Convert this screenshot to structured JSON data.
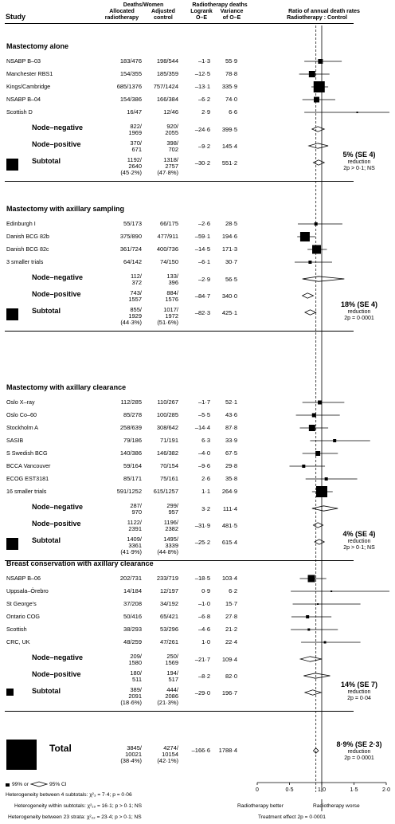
{
  "header": {
    "study": "Study",
    "deaths_women": "Deaths/Women",
    "allocated": "Allocated",
    "radiotherapy": "radiotherapy",
    "adjusted": "Adjusted",
    "control": "control",
    "rt_deaths": "Radiotherapy deaths",
    "logrank": "Logrank",
    "oe": "O–E",
    "variance": "Variance",
    "of_oe": "of O–E",
    "ratio_title": "Ratio of annual death rates",
    "ratio_sub": "Radiotherapy : Control"
  },
  "chart_data": {
    "type": "forest",
    "x_axis": {
      "ticks": [
        "0",
        "0·5",
        "1·0",
        "1·5",
        "2·0"
      ],
      "range": [
        0,
        2
      ],
      "reference_line": 1.0,
      "overall_effect_line": 0.91
    },
    "sections": [
      {
        "title": "Mastectomy alone",
        "studies": [
          {
            "name": "NSABP B–03",
            "rt": "183/476",
            "ctrl": "198/544",
            "oe": "–1·3",
            "var": "55·9",
            "ratio": 0.98,
            "lo": 0.73,
            "hi": 1.31,
            "box": 6
          },
          {
            "name": "Manchester RBS1",
            "rt": "154/355",
            "ctrl": "185/359",
            "oe": "–12·5",
            "var": "78·8",
            "ratio": 0.85,
            "lo": 0.65,
            "hi": 1.12,
            "box": 8
          },
          {
            "name": "Kings/Cambridge",
            "rt": "685/1376",
            "ctrl": "757/1424",
            "oe": "–13·1",
            "var": "335·9",
            "ratio": 0.96,
            "lo": 0.84,
            "hi": 1.1,
            "box": 14
          },
          {
            "name": "NSABP B–04",
            "rt": "154/386",
            "ctrl": "166/384",
            "oe": "–6·2",
            "var": "74·0",
            "ratio": 0.92,
            "lo": 0.7,
            "hi": 1.21,
            "box": 7
          },
          {
            "name": "Scottish D",
            "rt": "16/47",
            "ctrl": "12/46",
            "oe": "2·9",
            "var": "6·6",
            "ratio": 1.55,
            "lo": 0.73,
            "hi": 2.1,
            "box": 2
          }
        ],
        "node_negative": {
          "label": "Node–negative",
          "rt": "822/\n1969",
          "ctrl": "920/\n2055",
          "oe": "–24·6",
          "var": "399·5",
          "ratio": 0.94,
          "lo": 0.85,
          "hi": 1.04
        },
        "node_positive": {
          "label": "Node–positive",
          "rt": "370/\n671",
          "ctrl": "398/\n702",
          "oe": "–9·2",
          "var": "145·4",
          "ratio": 0.94,
          "lo": 0.8,
          "hi": 1.1
        },
        "subtotal": {
          "label": "Subtotal",
          "rt": "1192/\n2640\n(45·2%)",
          "ctrl": "1318/\n2757\n(47·8%)",
          "oe": "–30·2",
          "var": "551·2",
          "ratio": 0.95,
          "lo": 0.87,
          "hi": 1.04
        },
        "reduction": {
          "main": "5% (SE 4)",
          "word": "reduction",
          "p": "2p > 0·1; NS"
        }
      },
      {
        "title": "Mastectomy with axillary sampling",
        "studies": [
          {
            "name": "Edinburgh I",
            "rt": "55/173",
            "ctrl": "66/175",
            "oe": "–2·6",
            "var": "28·5",
            "ratio": 0.91,
            "lo": 0.63,
            "hi": 1.32,
            "box": 4
          },
          {
            "name": "Danish BCG 82b",
            "rt": "375/890",
            "ctrl": "477/911",
            "oe": "–59·1",
            "var": "194·6",
            "ratio": 0.74,
            "lo": 0.62,
            "hi": 0.9,
            "box": 12
          },
          {
            "name": "Danish BCG 82c",
            "rt": "361/724",
            "ctrl": "400/736",
            "oe": "–14·5",
            "var": "171·3",
            "ratio": 0.92,
            "lo": 0.78,
            "hi": 1.08,
            "box": 11
          },
          {
            "name": "3 smaller trials",
            "rt": "64/142",
            "ctrl": "74/150",
            "oe": "–6·1",
            "var": "30·7",
            "ratio": 0.82,
            "lo": 0.58,
            "hi": 1.16,
            "box": 4
          }
        ],
        "node_negative": {
          "label": "Node–negative",
          "rt": "112/\n372",
          "ctrl": "133/\n396",
          "oe": "–2·9",
          "var": "56·5",
          "ratio": 0.95,
          "lo": 0.7,
          "hi": 1.35
        },
        "node_positive": {
          "label": "Node–positive",
          "rt": "743/\n1557",
          "ctrl": "884/\n1576",
          "oe": "–84·7",
          "var": "340·0",
          "ratio": 0.78,
          "lo": 0.7,
          "hi": 0.87
        },
        "subtotal": {
          "label": "Subtotal",
          "rt": "855/\n1929\n(44·3%)",
          "ctrl": "1017/\n1972\n(51·6%)",
          "oe": "–82·3",
          "var": "425·1",
          "ratio": 0.82,
          "lo": 0.74,
          "hi": 0.91
        },
        "reduction": {
          "main": "18% (SE 4)",
          "word": "reduction",
          "p": "2p = 0·0001"
        }
      },
      {
        "title": "Mastectomy with axillary clearance",
        "studies": [
          {
            "name": "Oslo X–ray",
            "rt": "112/285",
            "ctrl": "110/267",
            "oe": "–1·7",
            "var": "52·1",
            "ratio": 0.97,
            "lo": 0.7,
            "hi": 1.35,
            "box": 5
          },
          {
            "name": "Oslo Co–60",
            "rt": "85/278",
            "ctrl": "100/285",
            "oe": "–5·5",
            "var": "43·6",
            "ratio": 0.88,
            "lo": 0.6,
            "hi": 1.28,
            "box": 5
          },
          {
            "name": "Stockholm A",
            "rt": "258/639",
            "ctrl": "308/642",
            "oe": "–14·4",
            "var": "87·8",
            "ratio": 0.85,
            "lo": 0.66,
            "hi": 1.1,
            "box": 8
          },
          {
            "name": "SASIB",
            "rt": "79/186",
            "ctrl": "71/191",
            "oe": "6·3",
            "var": "33·9",
            "ratio": 1.2,
            "lo": 0.82,
            "hi": 1.75,
            "box": 4
          },
          {
            "name": "S Swedish BCG",
            "rt": "140/386",
            "ctrl": "146/382",
            "oe": "–4·0",
            "var": "67·5",
            "ratio": 0.94,
            "lo": 0.7,
            "hi": 1.25,
            "box": 6
          },
          {
            "name": "BCCA Vancouver",
            "rt": "59/164",
            "ctrl": "70/154",
            "oe": "–9·6",
            "var": "29·8",
            "ratio": 0.72,
            "lo": 0.5,
            "hi": 1.05,
            "box": 4
          },
          {
            "name": "ECOG EST3181",
            "rt": "85/171",
            "ctrl": "75/161",
            "oe": "2·6",
            "var": "35·8",
            "ratio": 1.07,
            "lo": 0.75,
            "hi": 1.55,
            "box": 4
          },
          {
            "name": "16 smaller trials",
            "rt": "591/1252",
            "ctrl": "615/1257",
            "oe": "1·1",
            "var": "264·9",
            "ratio": 1.0,
            "lo": 0.85,
            "hi": 1.17,
            "box": 14
          }
        ],
        "node_negative": {
          "label": "Node–negative",
          "rt": "287/\n970",
          "ctrl": "299/\n957",
          "oe": "3·2",
          "var": "111·4",
          "ratio": 1.03,
          "lo": 0.85,
          "hi": 1.25
        },
        "node_positive": {
          "label": "Node–positive",
          "rt": "1122/\n2391",
          "ctrl": "1196/\n2382",
          "oe": "–31·9",
          "var": "481·5",
          "ratio": 0.94,
          "lo": 0.87,
          "hi": 1.02
        },
        "subtotal": {
          "label": "Subtotal",
          "rt": "1409/\n3361\n(41·9%)",
          "ctrl": "1495/\n3339\n(44·8%)",
          "oe": "–25·2",
          "var": "615·4",
          "ratio": 0.96,
          "lo": 0.89,
          "hi": 1.04
        },
        "reduction": {
          "main": "4% (SE 4)",
          "word": "reduction",
          "p": "2p > 0·1; NS"
        }
      },
      {
        "title": "Breast conservation with axillary clearance",
        "studies": [
          {
            "name": "NSABP B–06",
            "rt": "202/731",
            "ctrl": "233/719",
            "oe": "–18·5",
            "var": "103·4",
            "ratio": 0.84,
            "lo": 0.66,
            "hi": 1.07,
            "box": 9
          },
          {
            "name": "Uppsala–Örebro",
            "rt": "14/184",
            "ctrl": "12/197",
            "oe": "0·9",
            "var": "6·2",
            "ratio": 1.15,
            "lo": 0.52,
            "hi": 2.1,
            "box": 2
          },
          {
            "name": "St George's",
            "rt": "37/208",
            "ctrl": "34/192",
            "oe": "–1·0",
            "var": "15·7",
            "ratio": 0.94,
            "lo": 0.55,
            "hi": 1.6,
            "box": 2
          },
          {
            "name": "Ontario COG",
            "rt": "50/416",
            "ctrl": "65/421",
            "oe": "–6·8",
            "var": "27·8",
            "ratio": 0.78,
            "lo": 0.53,
            "hi": 1.15,
            "box": 4
          },
          {
            "name": "Scottish",
            "rt": "38/293",
            "ctrl": "53/296",
            "oe": "–4·6",
            "var": "21·2",
            "ratio": 0.8,
            "lo": 0.52,
            "hi": 1.25,
            "box": 3
          },
          {
            "name": "CRC, UK",
            "rt": "48/259",
            "ctrl": "47/261",
            "oe": "1·0",
            "var": "22·4",
            "ratio": 1.05,
            "lo": 0.68,
            "hi": 1.6,
            "box": 3
          }
        ],
        "node_negative": {
          "label": "Node–negative",
          "rt": "209/\n1580",
          "ctrl": "250/\n1569",
          "oe": "–21·7",
          "var": "109·4",
          "ratio": 0.82,
          "lo": 0.67,
          "hi": 1.0
        },
        "node_positive": {
          "label": "Node–positive",
          "rt": "180/\n511",
          "ctrl": "194/\n517",
          "oe": "–8·2",
          "var": "82·0",
          "ratio": 0.9,
          "lo": 0.72,
          "hi": 1.13
        },
        "subtotal": {
          "label": "Subtotal",
          "rt": "389/\n2091\n(18·6%)",
          "ctrl": "444/\n2086\n(21·3%)",
          "oe": "–29·0",
          "var": "196·7",
          "ratio": 0.86,
          "lo": 0.74,
          "hi": 0.99
        },
        "reduction": {
          "main": "14% (SE 7)",
          "word": "reduction",
          "p": "2p = 0·04"
        }
      }
    ],
    "total": {
      "label": "Total",
      "rt": "3845/\n10021\n(38·4%)",
      "ctrl": "4274/\n10154\n(42·1%)",
      "oe": "–166·6",
      "var": "1788·4",
      "ratio": 0.91,
      "lo": 0.87,
      "hi": 0.95,
      "reduction": {
        "main": "8·9% (SE 2·3)",
        "word": "reduction",
        "p": "2p = 0·0001"
      }
    }
  },
  "legend": {
    "ci99": "99% or",
    "ci95": "95% CI"
  },
  "footer": {
    "het1": "Heterogeneity between 4 subtotals: χ²₃ = 7·4; p = 0·06",
    "het2": "Heterogeneity within subtotals: χ²₁₉ = 16·1; p > 0·1; NS",
    "het3": "Heterogeneity between 23 strata: χ²₂₂ = 23·4; p > 0·1; NS",
    "better": "Radiotherapy better",
    "worse": "Radiotherapy worse",
    "effect": "Treatment effect 2p = 0·0001"
  }
}
